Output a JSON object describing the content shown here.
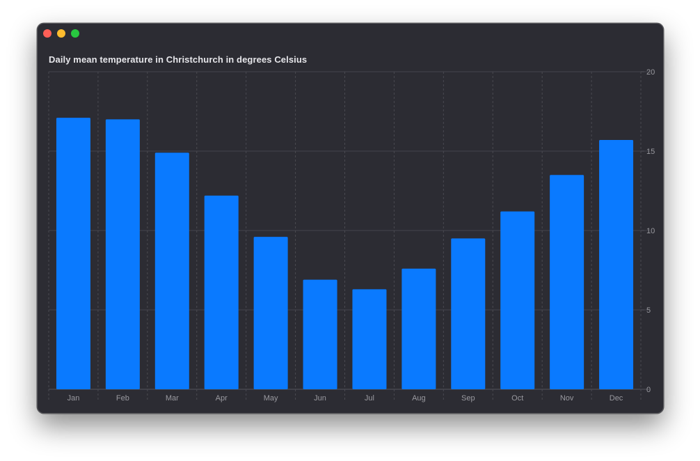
{
  "window": {
    "controls": [
      "close",
      "minimize",
      "zoom"
    ]
  },
  "chart_data": {
    "type": "bar",
    "title": "Daily mean temperature in Christchurch in degrees Celsius",
    "xlabel": "",
    "ylabel": "",
    "categories": [
      "Jan",
      "Feb",
      "Mar",
      "Apr",
      "May",
      "Jun",
      "Jul",
      "Aug",
      "Sep",
      "Oct",
      "Nov",
      "Dec"
    ],
    "values": [
      17.1,
      17.0,
      14.9,
      12.2,
      9.6,
      6.9,
      6.3,
      7.6,
      9.5,
      11.2,
      13.5,
      15.7
    ],
    "ylim": [
      0,
      20
    ],
    "yticks": [
      0,
      5,
      10,
      15,
      20
    ],
    "y_axis_side": "right",
    "grid": true,
    "legend": "none",
    "colors": {
      "bar": "#0a7aff",
      "background": "#2c2c33",
      "grid": "#45454c",
      "label": "#9a9aa0",
      "title": "#e6e6ea"
    }
  }
}
